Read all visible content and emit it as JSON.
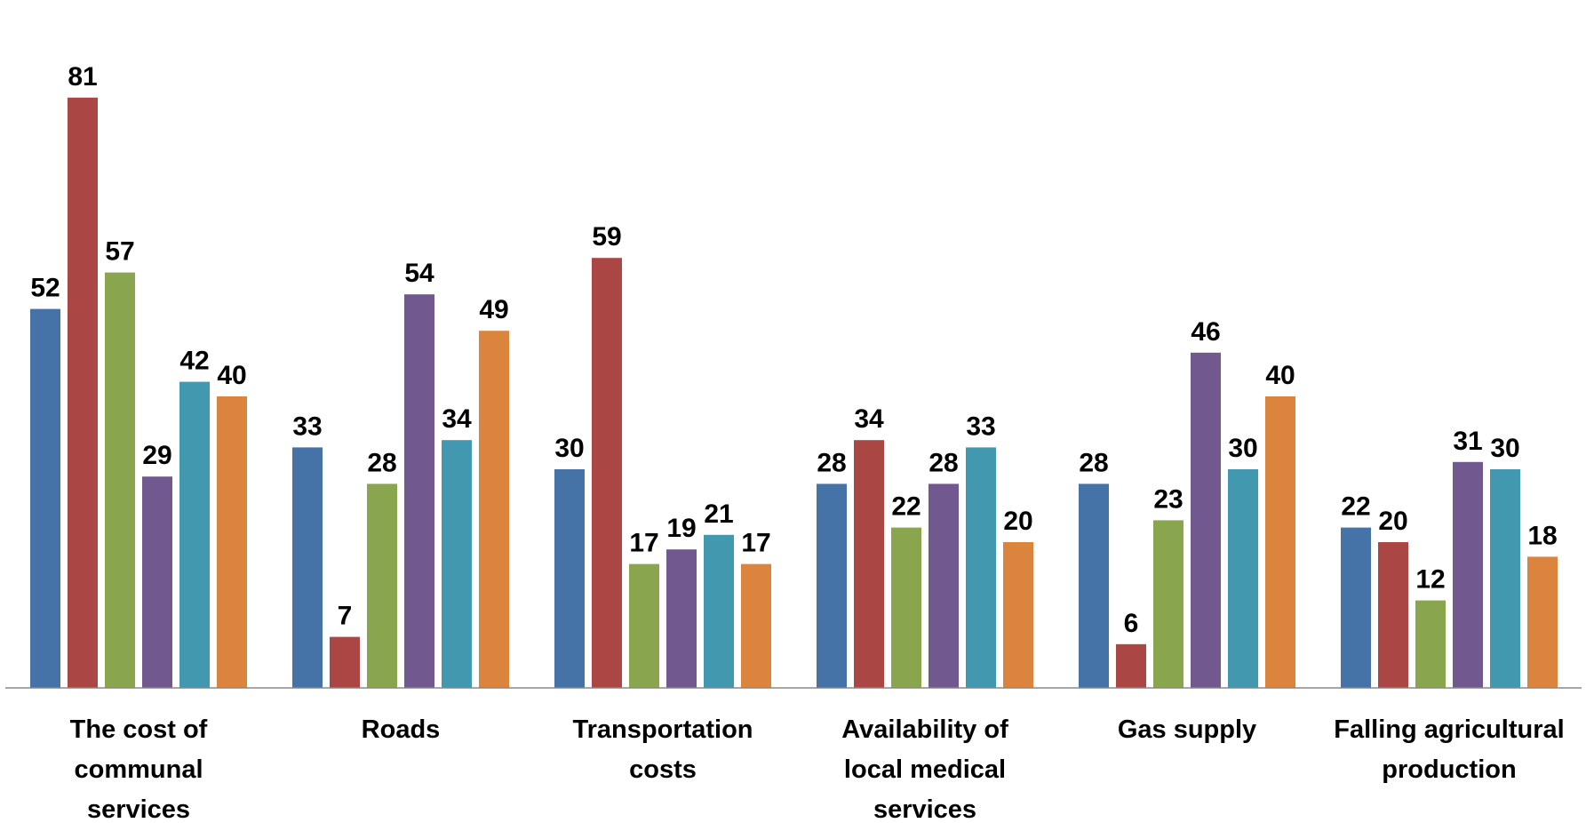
{
  "chart_data": {
    "type": "bar",
    "title": "",
    "xlabel": "",
    "ylabel": "",
    "ylim": [
      0,
      85
    ],
    "grid": false,
    "legend": "none",
    "categories": [
      "The cost of communal services",
      "Roads",
      "Transportation costs",
      "Availability of local medical services",
      "Gas supply",
      "Falling agricultural production"
    ],
    "category_lines": [
      [
        "The cost of",
        "communal",
        "services"
      ],
      [
        "Roads"
      ],
      [
        "Transportation",
        "costs"
      ],
      [
        "Availability of",
        "local medical",
        "services"
      ],
      [
        "Gas supply"
      ],
      [
        "Falling agricultural",
        "production"
      ]
    ],
    "series_colors": [
      "#4572A7",
      "#AA4643",
      "#89A54E",
      "#71588F",
      "#4198AF",
      "#DB843D"
    ],
    "series": [
      {
        "values": [
          52,
          33,
          30,
          28,
          28,
          22
        ]
      },
      {
        "values": [
          81,
          7,
          59,
          34,
          6,
          20
        ]
      },
      {
        "values": [
          57,
          28,
          17,
          22,
          23,
          12
        ]
      },
      {
        "values": [
          29,
          54,
          19,
          28,
          46,
          31
        ]
      },
      {
        "values": [
          42,
          34,
          21,
          33,
          30,
          30
        ]
      },
      {
        "values": [
          40,
          49,
          17,
          20,
          40,
          18
        ]
      }
    ]
  }
}
